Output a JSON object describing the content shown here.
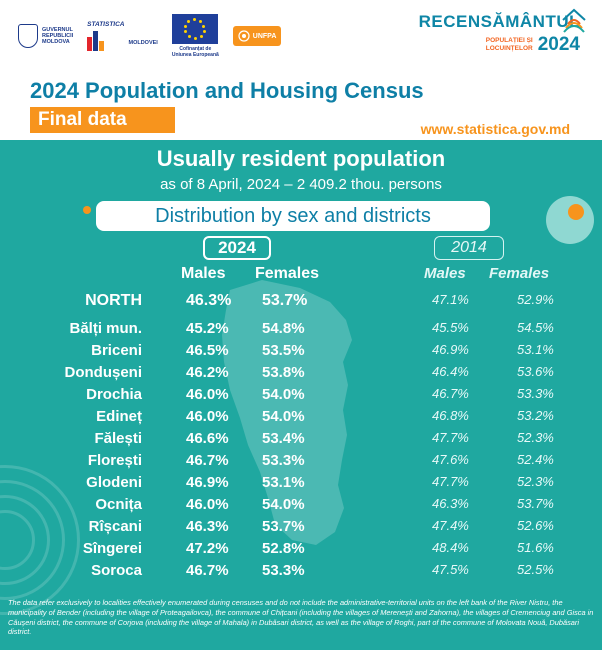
{
  "header": {
    "logos": {
      "gov_line1": "GUVERNUL",
      "gov_line2": "REPUBLICII",
      "gov_line3": "MOLDOVA",
      "stat_line1": "STATISTICA",
      "stat_line2": "MOLDOVEI",
      "eu_line1": "Cofinanțat de",
      "eu_line2": "Uniunea Europeană",
      "unfpa": "UNFPA"
    },
    "census_logo": {
      "title": "RECENSĂMÂNTUL",
      "sub_line1": "POPULAȚIEI ȘI",
      "sub_line2": "LOCUINȚELOR",
      "year": "2024"
    },
    "main_title": "2024 Population and Housing Census",
    "badge": "Final data",
    "website": "www.statistica.gov.md"
  },
  "panel": {
    "title": "Usually resident population",
    "subtitle": "as of 8 April, 2024 – 2 409.2 thou. persons",
    "distribution_label": "Distribution by sex and districts",
    "year_current": "2024",
    "year_previous": "2014",
    "col_males": "Males",
    "col_females": "Females",
    "rows": [
      {
        "name": "NORTH",
        "m24": "46.3%",
        "f24": "53.7%",
        "m14": "47.1%",
        "f14": "52.9%"
      },
      {
        "name": "Bălți mun.",
        "m24": "45.2%",
        "f24": "54.8%",
        "m14": "45.5%",
        "f14": "54.5%"
      },
      {
        "name": "Briceni",
        "m24": "46.5%",
        "f24": "53.5%",
        "m14": "46.9%",
        "f14": "53.1%"
      },
      {
        "name": "Dondușeni",
        "m24": "46.2%",
        "f24": "53.8%",
        "m14": "46.4%",
        "f14": "53.6%"
      },
      {
        "name": "Drochia",
        "m24": "46.0%",
        "f24": "54.0%",
        "m14": "46.7%",
        "f14": "53.3%"
      },
      {
        "name": "Edineț",
        "m24": "46.0%",
        "f24": "54.0%",
        "m14": "46.8%",
        "f14": "53.2%"
      },
      {
        "name": "Fălești",
        "m24": "46.6%",
        "f24": "53.4%",
        "m14": "47.7%",
        "f14": "52.3%"
      },
      {
        "name": "Florești",
        "m24": "46.7%",
        "f24": "53.3%",
        "m14": "47.6%",
        "f14": "52.4%"
      },
      {
        "name": "Glodeni",
        "m24": "46.9%",
        "f24": "53.1%",
        "m14": "47.7%",
        "f14": "52.3%"
      },
      {
        "name": "Ocnița",
        "m24": "46.0%",
        "f24": "54.0%",
        "m14": "46.3%",
        "f14": "53.7%"
      },
      {
        "name": "Rîșcani",
        "m24": "46.3%",
        "f24": "53.7%",
        "m14": "47.4%",
        "f14": "52.6%"
      },
      {
        "name": "Sîngerei",
        "m24": "47.2%",
        "f24": "52.8%",
        "m14": "48.4%",
        "f14": "51.6%"
      },
      {
        "name": "Soroca",
        "m24": "46.7%",
        "f24": "53.3%",
        "m14": "47.5%",
        "f14": "52.5%"
      }
    ],
    "footnote": "The data refer exclusively to localities effectively enumerated during censuses and do not include the administrative-territorial units on the left bank of the River Nistru, the municipality of Bender (including the village of Proteagailovca), the commune of Chițcani (including the villages of Merenești and Zahorna), the villages of Cremenciug and Gisca in Căușeni district, the commune of Corjova (including the village of Mahala) in Dubăsari district, as well as the village of Roghi, part of the commune of Molovata Nouă, Dubăsari district."
  },
  "colors": {
    "teal_panel": "#1fa8a0",
    "orange_accent": "#f7941d",
    "title_blue": "#0e7fa6"
  }
}
